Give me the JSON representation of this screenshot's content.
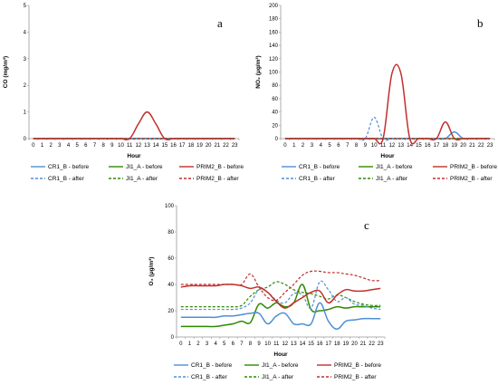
{
  "colors": {
    "cr1": "#4f8fd4",
    "ji1": "#2e8b00",
    "prim2": "#c0302b",
    "axis": "#999999",
    "grid": "#bfbfbf"
  },
  "chart_data": [
    {
      "type": "line",
      "panel_label": "a",
      "xlabel": "Hour",
      "ylabel": "CO (mg/m³)",
      "ylim": [
        0,
        5
      ],
      "ystep": 1,
      "x": [
        0,
        1,
        2,
        3,
        4,
        5,
        6,
        7,
        8,
        9,
        10,
        11,
        12,
        13,
        14,
        15,
        16,
        17,
        18,
        19,
        20,
        21,
        22,
        23
      ],
      "legend_placement": "bottom",
      "series": [
        {
          "name": "CR1_B - before",
          "color_key": "cr1",
          "dash": false,
          "values": [
            0,
            0,
            0,
            0,
            0,
            0,
            0,
            0,
            0,
            0,
            0,
            0,
            0,
            0,
            0,
            0,
            0,
            0,
            0,
            0,
            0,
            0,
            0,
            0
          ]
        },
        {
          "name": "JI1_A - before",
          "color_key": "ji1",
          "dash": false,
          "values": [
            0,
            0,
            0,
            0,
            0,
            0,
            0,
            0,
            0,
            0,
            0,
            0,
            0,
            0,
            0,
            0,
            0,
            0,
            0,
            0,
            0,
            0,
            0,
            0
          ]
        },
        {
          "name": "PRIM2_B - before",
          "color_key": "prim2",
          "dash": false,
          "values": [
            0,
            0,
            0,
            0,
            0,
            0,
            0,
            0,
            0,
            0,
            0,
            0,
            0.55,
            1.0,
            0.55,
            0,
            0,
            0,
            0,
            0,
            0,
            0,
            0,
            0
          ]
        },
        {
          "name": "CR1_B - after",
          "color_key": "cr1",
          "dash": true,
          "values": [
            0,
            0,
            0,
            0,
            0,
            0,
            0,
            0,
            0,
            0,
            0,
            0,
            0,
            0,
            0,
            0,
            0,
            0,
            0,
            0,
            0,
            0,
            0,
            0
          ]
        },
        {
          "name": "JI1_A - after",
          "color_key": "ji1",
          "dash": true,
          "values": [
            0,
            0,
            0,
            0,
            0,
            0,
            0,
            0,
            0,
            0,
            0,
            0,
            0,
            0,
            0,
            0,
            0,
            0,
            0,
            0,
            0,
            0,
            0,
            0
          ]
        },
        {
          "name": "PRIM2_B - after",
          "color_key": "prim2",
          "dash": true,
          "values": [
            0,
            0,
            0,
            0,
            0,
            0,
            0,
            0,
            0,
            0,
            0,
            0,
            0,
            0,
            0,
            0,
            0,
            0,
            0,
            0,
            0,
            0,
            0,
            0
          ]
        }
      ]
    },
    {
      "type": "line",
      "panel_label": "b",
      "xlabel": "Hour",
      "ylabel": "NO₂ (μg/m³)",
      "ylim": [
        0,
        200
      ],
      "ystep": 20,
      "x": [
        0,
        1,
        2,
        3,
        4,
        5,
        6,
        7,
        8,
        9,
        10,
        11,
        12,
        13,
        14,
        15,
        16,
        17,
        18,
        19,
        20,
        21,
        22,
        23
      ],
      "legend_placement": "bottom",
      "series": [
        {
          "name": "CR1_B - before",
          "color_key": "cr1",
          "dash": false,
          "values": [
            0,
            0,
            0,
            0,
            0,
            0,
            0,
            0,
            0,
            0,
            0,
            0,
            0,
            0,
            0,
            0,
            0,
            0,
            0,
            10,
            0,
            0,
            0,
            0
          ]
        },
        {
          "name": "JI1_A - before",
          "color_key": "ji1",
          "dash": false,
          "values": [
            0,
            0,
            0,
            0,
            0,
            0,
            0,
            0,
            0,
            0,
            0,
            0,
            0,
            0,
            0,
            0,
            0,
            0,
            0,
            0,
            0,
            0,
            0,
            0
          ]
        },
        {
          "name": "PRIM2_B - before",
          "color_key": "prim2",
          "dash": false,
          "values": [
            0,
            0,
            0,
            0,
            0,
            0,
            0,
            0,
            0,
            0,
            0,
            0,
            98,
            98,
            0,
            0,
            0,
            0,
            25,
            0,
            0,
            0,
            0,
            0
          ]
        },
        {
          "name": "CR1_B - after",
          "color_key": "cr1",
          "dash": true,
          "values": [
            0,
            0,
            0,
            0,
            0,
            0,
            0,
            0,
            0,
            0,
            32,
            0,
            0,
            0,
            0,
            0,
            0,
            0,
            0,
            0,
            0,
            0,
            0,
            0
          ]
        },
        {
          "name": "JI1_A - after",
          "color_key": "ji1",
          "dash": true,
          "values": [
            0,
            0,
            0,
            0,
            0,
            0,
            0,
            0,
            0,
            0,
            0,
            0,
            0,
            0,
            0,
            0,
            0,
            0,
            0,
            0,
            0,
            0,
            0,
            0
          ]
        },
        {
          "name": "PRIM2_B - after",
          "color_key": "prim2",
          "dash": true,
          "values": [
            0,
            0,
            0,
            0,
            0,
            0,
            0,
            0,
            0,
            0,
            0,
            0,
            0,
            0,
            0,
            0,
            0,
            0,
            0,
            0,
            0,
            0,
            0,
            0
          ]
        }
      ]
    },
    {
      "type": "line",
      "panel_label": "c",
      "xlabel": "Hour",
      "ylabel": "O₃ (μg/m³)",
      "ylim": [
        0,
        100
      ],
      "ystep": 20,
      "x": [
        0,
        1,
        2,
        3,
        4,
        5,
        6,
        7,
        8,
        9,
        10,
        11,
        12,
        13,
        14,
        15,
        16,
        17,
        18,
        19,
        20,
        21,
        22,
        23
      ],
      "legend_placement": "bottom",
      "series": [
        {
          "name": "CR1_B - before",
          "color_key": "cr1",
          "dash": false,
          "values": [
            15,
            15,
            15,
            15,
            15,
            16,
            16,
            17,
            18,
            18,
            10,
            16,
            18,
            10,
            10,
            10,
            26,
            12,
            6,
            12,
            13,
            14,
            14,
            14
          ]
        },
        {
          "name": "JI1_A - before",
          "color_key": "ji1",
          "dash": false,
          "values": [
            8,
            8,
            8,
            8,
            8,
            9,
            10,
            12,
            11,
            25,
            22,
            26,
            23,
            26,
            40,
            21,
            20,
            21,
            23,
            22,
            23,
            23,
            23,
            23
          ]
        },
        {
          "name": "PRIM2_B - before",
          "color_key": "prim2",
          "dash": false,
          "values": [
            38,
            39,
            39,
            39,
            39,
            40,
            40,
            39,
            37,
            38,
            34,
            27,
            22,
            26,
            30,
            34,
            35,
            26,
            32,
            36,
            35,
            35,
            36,
            37
          ]
        },
        {
          "name": "CR1_B - after",
          "color_key": "cr1",
          "dash": true,
          "values": [
            21,
            21,
            21,
            21,
            21,
            21,
            21,
            22,
            26,
            36,
            34,
            28,
            26,
            33,
            32,
            22,
            42,
            36,
            27,
            30,
            25,
            24,
            22,
            21
          ]
        },
        {
          "name": "JI1_A - after",
          "color_key": "ji1",
          "dash": true,
          "values": [
            23,
            23,
            23,
            23,
            23,
            23,
            23,
            24,
            31,
            36,
            38,
            42,
            40,
            36,
            34,
            33,
            31,
            29,
            32,
            30,
            27,
            25,
            24,
            24
          ]
        },
        {
          "name": "PRIM2_B - after",
          "color_key": "prim2",
          "dash": true,
          "values": [
            40,
            40,
            40,
            40,
            40,
            40,
            40,
            40,
            48,
            38,
            30,
            28,
            34,
            40,
            47,
            50,
            50,
            49,
            49,
            48,
            47,
            45,
            43,
            43
          ]
        }
      ]
    }
  ]
}
